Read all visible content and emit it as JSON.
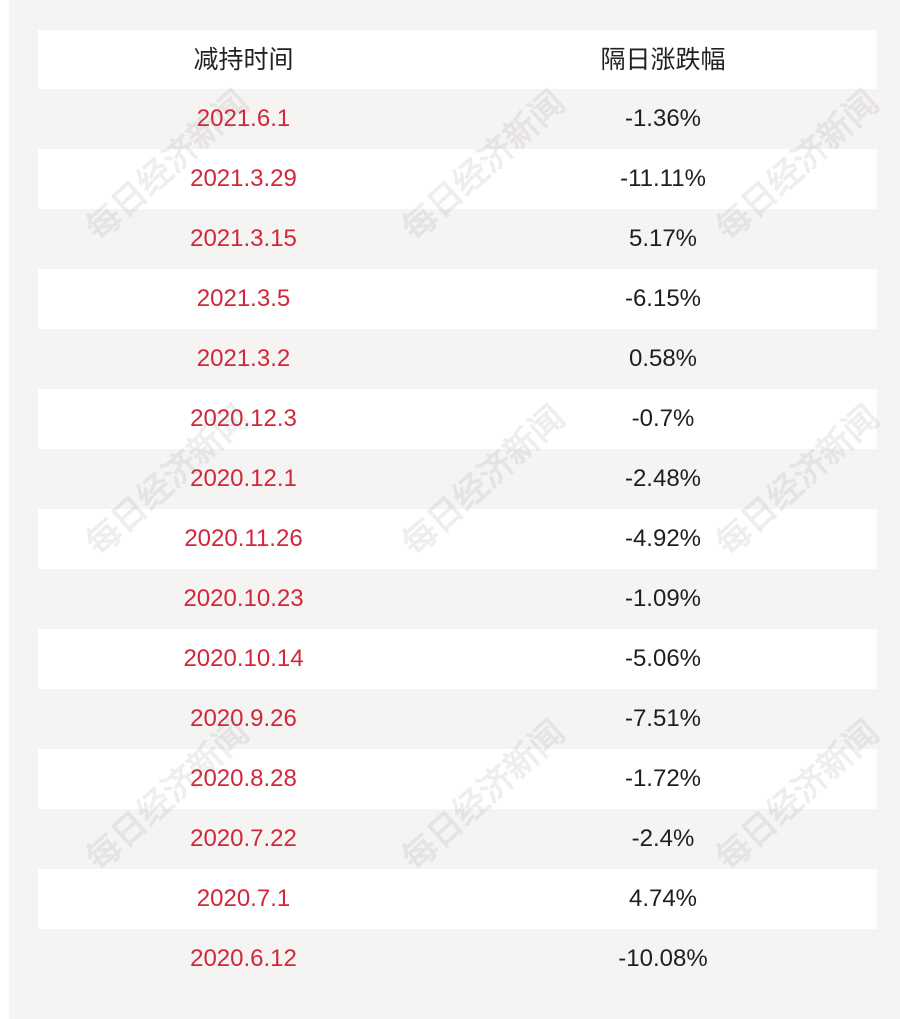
{
  "table": {
    "headers": {
      "date": "减持时间",
      "change": "隔日涨跌幅"
    },
    "rows": [
      {
        "date": "2021.6.1",
        "change": "-1.36%"
      },
      {
        "date": "2021.3.29",
        "change": "-11.11%"
      },
      {
        "date": "2021.3.15",
        "change": "5.17%"
      },
      {
        "date": "2021.3.5",
        "change": "-6.15%"
      },
      {
        "date": "2021.3.2",
        "change": "0.58%"
      },
      {
        "date": "2020.12.3",
        "change": "-0.7%"
      },
      {
        "date": "2020.12.1",
        "change": "-2.48%"
      },
      {
        "date": "2020.11.26",
        "change": "-4.92%"
      },
      {
        "date": "2020.10.23",
        "change": "-1.09%"
      },
      {
        "date": "2020.10.14",
        "change": "-5.06%"
      },
      {
        "date": "2020.9.26",
        "change": "-7.51%"
      },
      {
        "date": "2020.8.28",
        "change": "-1.72%"
      },
      {
        "date": "2020.7.22",
        "change": "-2.4%"
      },
      {
        "date": "2020.7.1",
        "change": "4.74%"
      },
      {
        "date": "2020.6.12",
        "change": "-10.08%"
      }
    ]
  },
  "watermark": {
    "text": "每日经济新闻"
  },
  "colors": {
    "date_text": "#d0283a",
    "change_text": "#1e1e1e",
    "background": "#f6f3f3",
    "row_white": "#ffffff"
  }
}
